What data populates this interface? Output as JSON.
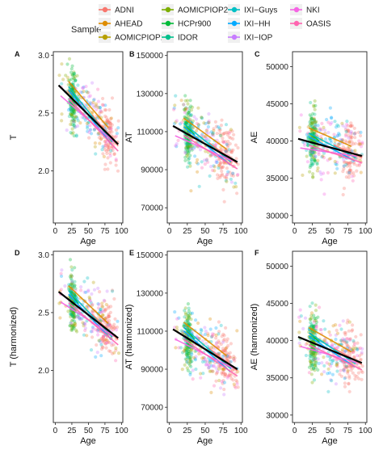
{
  "legend": {
    "title": "Sample",
    "entries": [
      {
        "name": "ADNI",
        "color": "#F8766D"
      },
      {
        "name": "AHEAD",
        "color": "#DE8C00"
      },
      {
        "name": "AOMICPIOP1",
        "color": "#B79F00"
      },
      {
        "name": "AOMICPIOP2",
        "color": "#7CAE00"
      },
      {
        "name": "HCPr900",
        "color": "#00BA38"
      },
      {
        "name": "IDOR",
        "color": "#00C08B"
      },
      {
        "name": "IXI−Guys",
        "color": "#00BFC4"
      },
      {
        "name": "IXI−HH",
        "color": "#00A9FF"
      },
      {
        "name": "IXI−IOP",
        "color": "#C77CFF"
      },
      {
        "name": "NKI",
        "color": "#F564E3"
      },
      {
        "name": "OASIS",
        "color": "#FF64B0"
      }
    ]
  },
  "chart_data": [
    {
      "panel": "A",
      "type": "scatter",
      "ylabel": "T",
      "xlabel": "Age",
      "xticks": [
        0,
        25,
        50,
        75,
        100
      ],
      "yticks": [
        2.0,
        2.5,
        3.0
      ],
      "ytick_labels": [
        "2.0",
        "2.5",
        "3.0"
      ],
      "xlim": [
        -3,
        102
      ],
      "ylim": [
        1.55,
        3.03
      ],
      "fit_line": {
        "x": [
          5,
          95
        ],
        "y": [
          2.74,
          2.23
        ]
      }
    },
    {
      "panel": "B",
      "type": "scatter",
      "ylabel": "AT",
      "xlabel": "Age",
      "xticks": [
        0,
        25,
        50,
        75,
        100
      ],
      "yticks": [
        70000,
        90000,
        110000,
        130000,
        150000
      ],
      "ytick_labels": [
        "70000",
        "90000",
        "110000",
        "130000",
        "150000"
      ],
      "xlim": [
        -3,
        102
      ],
      "ylim": [
        62000,
        152000
      ],
      "fit_line": {
        "x": [
          5,
          95
        ],
        "y": [
          113000,
          94000
        ]
      }
    },
    {
      "panel": "C",
      "type": "scatter",
      "ylabel": "AE",
      "xlabel": "Age",
      "xticks": [
        0,
        25,
        50,
        75,
        100
      ],
      "yticks": [
        30000,
        35000,
        40000,
        45000,
        50000
      ],
      "ytick_labels": [
        "30000",
        "35000",
        "40000",
        "45000",
        "50000"
      ],
      "xlim": [
        -3,
        102
      ],
      "ylim": [
        29000,
        52000
      ],
      "fit_line": {
        "x": [
          5,
          95
        ],
        "y": [
          40300,
          38000
        ]
      }
    },
    {
      "panel": "D",
      "type": "scatter",
      "ylabel": "T (harmonized)",
      "xlabel": "Age",
      "xticks": [
        0,
        25,
        50,
        75,
        100
      ],
      "yticks": [
        2.0,
        2.5,
        3.0
      ],
      "ytick_labels": [
        "2.0",
        "2.5",
        "3.0"
      ],
      "xlim": [
        -3,
        102
      ],
      "ylim": [
        1.55,
        3.03
      ],
      "fit_line": {
        "x": [
          5,
          95
        ],
        "y": [
          2.68,
          2.28
        ]
      }
    },
    {
      "panel": "E",
      "type": "scatter",
      "ylabel": "AT (harmonized)",
      "xlabel": "Age",
      "xticks": [
        0,
        25,
        50,
        75,
        100
      ],
      "yticks": [
        70000,
        90000,
        110000,
        130000,
        150000
      ],
      "ytick_labels": [
        "70000",
        "90000",
        "110000",
        "130000",
        "150000"
      ],
      "xlim": [
        -3,
        102
      ],
      "ylim": [
        62000,
        152000
      ],
      "fit_line": {
        "x": [
          5,
          95
        ],
        "y": [
          111000,
          90000
        ]
      }
    },
    {
      "panel": "F",
      "type": "scatter",
      "ylabel": "AE (harmonized)",
      "xlabel": "Age",
      "xticks": [
        0,
        25,
        50,
        75,
        100
      ],
      "yticks": [
        30000,
        35000,
        40000,
        45000,
        50000
      ],
      "ytick_labels": [
        "30000",
        "35000",
        "40000",
        "45000",
        "50000"
      ],
      "xlim": [
        -3,
        102
      ],
      "ylim": [
        29000,
        52000
      ],
      "fit_line": {
        "x": [
          5,
          95
        ],
        "y": [
          40500,
          37000
        ]
      }
    }
  ]
}
